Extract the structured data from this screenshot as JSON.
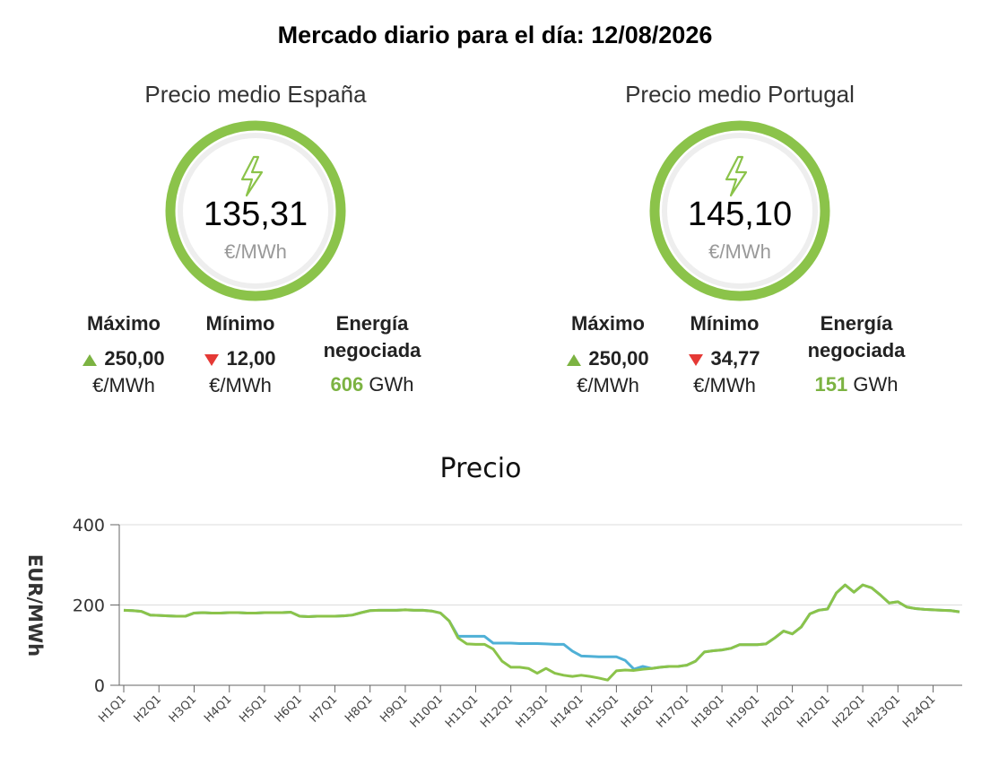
{
  "header": {
    "title": "Mercado diario para el día: 12/08/2026"
  },
  "cards": [
    {
      "title": "Precio medio España",
      "price": "135,31",
      "unit": "€/MWh",
      "maximum": {
        "label": "Máximo",
        "value": "250,00",
        "unit": "€/MWh"
      },
      "minimum": {
        "label": "Mínimo",
        "value": "12,00",
        "unit": "€/MWh"
      },
      "energy": {
        "label": "Energía negociada",
        "value": "606",
        "unit": "GWh"
      }
    },
    {
      "title": "Precio medio Portugal",
      "price": "145,10",
      "unit": "€/MWh",
      "maximum": {
        "label": "Máximo",
        "value": "250,00",
        "unit": "€/MWh"
      },
      "minimum": {
        "label": "Mínimo",
        "value": "34,77",
        "unit": "€/MWh"
      },
      "energy": {
        "label": "Energía negociada",
        "value": "151",
        "unit": "GWh"
      }
    }
  ],
  "chart_data": {
    "type": "line",
    "title": "Precio",
    "y_label": "EUR/MWh",
    "ylim": [
      0,
      400
    ],
    "yticks": [
      0,
      200,
      400
    ],
    "grid": true,
    "categories": [
      "H1Q1",
      null,
      null,
      null,
      "H2Q1",
      null,
      null,
      null,
      "H3Q1",
      null,
      null,
      null,
      "H4Q1",
      null,
      null,
      null,
      "H5Q1",
      null,
      null,
      null,
      "H6Q1",
      null,
      null,
      null,
      "H7Q1",
      null,
      null,
      null,
      "H8Q1",
      null,
      null,
      null,
      "H9Q1",
      null,
      null,
      null,
      "H10Q1",
      null,
      null,
      null,
      "H11Q1",
      null,
      null,
      null,
      "H12Q1",
      null,
      null,
      null,
      "H13Q1",
      null,
      null,
      null,
      "H14Q1",
      null,
      null,
      null,
      "H15Q1",
      null,
      null,
      null,
      "H16Q1",
      null,
      null,
      null,
      "H17Q1",
      null,
      null,
      null,
      "H18Q1",
      null,
      null,
      null,
      "H19Q1",
      null,
      null,
      null,
      "H20Q1",
      null,
      null,
      null,
      "H21Q1",
      null,
      null,
      null,
      "H22Q1",
      null,
      null,
      null,
      "H23Q1",
      null,
      null,
      null,
      "H24Q1",
      null,
      null,
      null
    ],
    "series": [
      {
        "color": "#4fb0d6",
        "values": [
          187,
          186,
          184,
          175,
          174,
          173,
          172,
          172,
          180,
          181,
          180,
          180,
          181,
          181,
          180,
          180,
          181,
          181,
          181,
          182,
          172,
          171,
          172,
          172,
          172,
          173,
          175,
          181,
          186,
          187,
          187,
          187,
          188,
          187,
          187,
          185,
          180,
          160,
          122,
          122,
          122,
          122,
          105,
          105,
          105,
          104,
          104,
          104,
          103,
          102,
          102,
          85,
          73,
          72,
          71,
          71,
          71,
          62,
          40,
          47,
          42,
          45,
          47,
          47,
          50,
          60,
          83,
          86,
          88,
          92,
          101,
          101,
          101,
          103,
          118,
          135,
          128,
          145,
          178,
          187,
          190,
          230,
          250,
          232,
          250,
          243,
          225,
          205,
          208,
          195,
          191,
          189,
          188,
          187,
          186,
          183
        ]
      },
      {
        "color": "#8bc34a",
        "values": [
          187,
          186,
          184,
          175,
          174,
          173,
          172,
          172,
          180,
          181,
          180,
          180,
          181,
          181,
          180,
          180,
          181,
          181,
          181,
          182,
          172,
          171,
          172,
          172,
          172,
          173,
          175,
          181,
          186,
          187,
          187,
          187,
          188,
          187,
          187,
          185,
          180,
          160,
          118,
          103,
          102,
          102,
          90,
          60,
          45,
          45,
          42,
          30,
          42,
          30,
          25,
          22,
          25,
          22,
          18,
          13,
          36,
          38,
          37,
          40,
          42,
          45,
          47,
          47,
          50,
          60,
          83,
          86,
          88,
          92,
          101,
          101,
          101,
          103,
          118,
          135,
          128,
          145,
          178,
          187,
          190,
          230,
          250,
          232,
          250,
          243,
          225,
          205,
          208,
          195,
          191,
          189,
          188,
          187,
          186,
          183
        ]
      }
    ]
  }
}
